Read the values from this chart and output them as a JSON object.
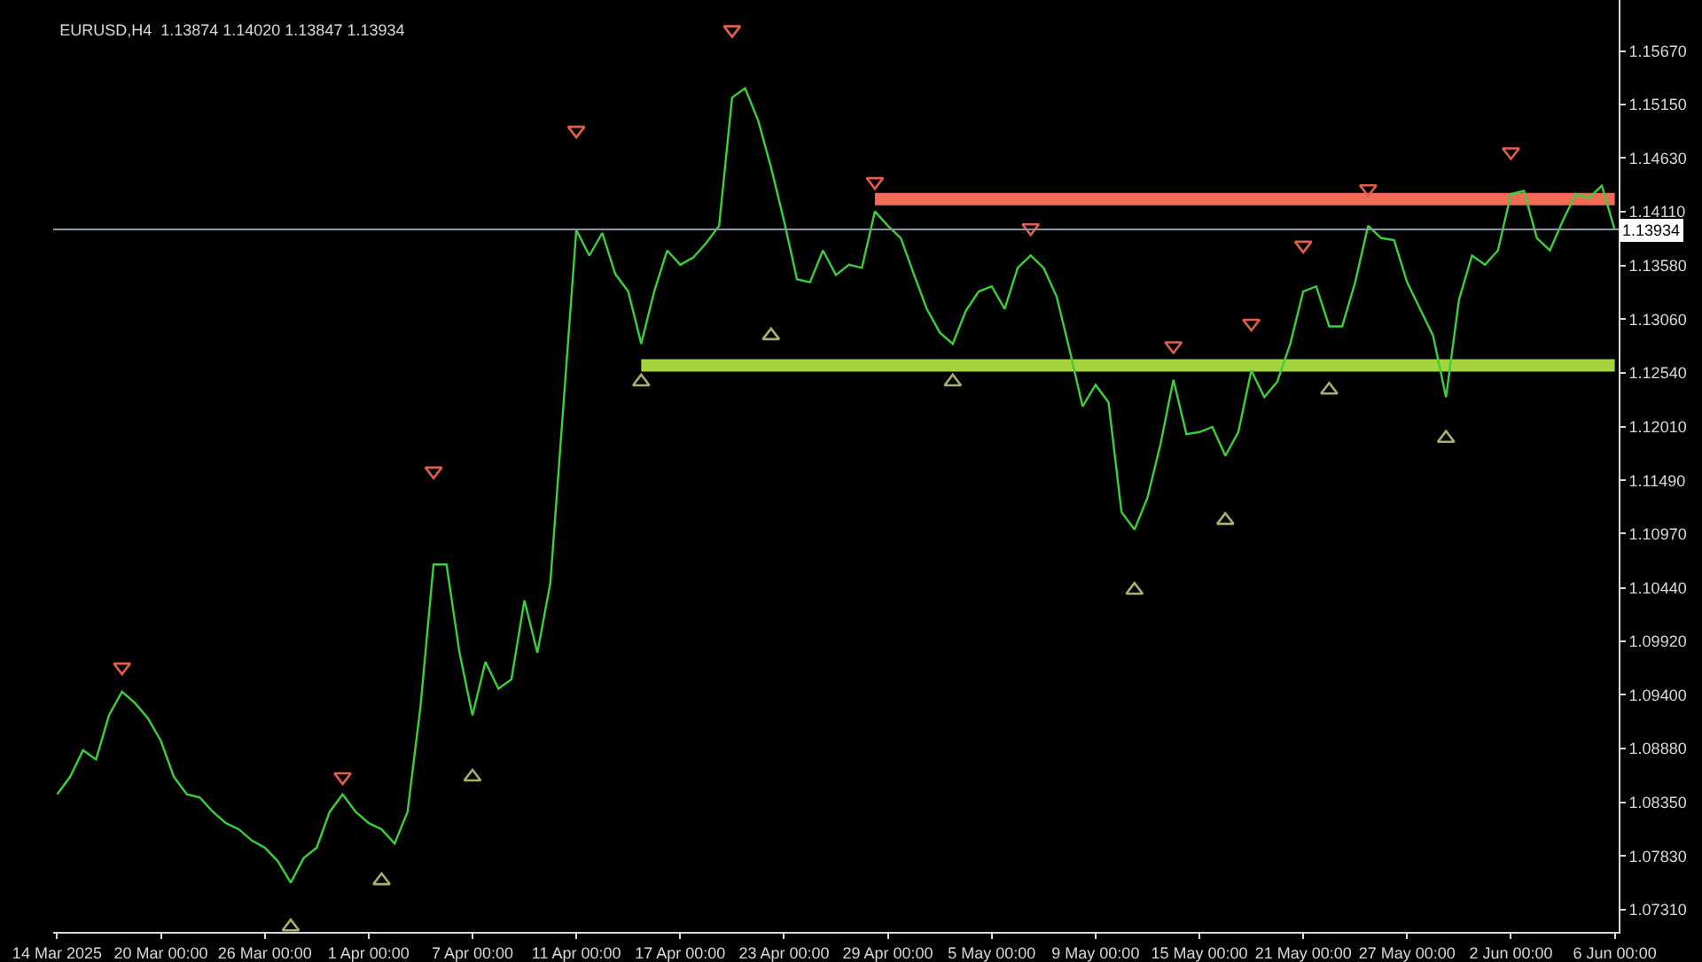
{
  "chart_data": {
    "type": "line",
    "title": "EURUSD,H4  1.13874 1.14020 1.13847 1.13934",
    "categories": [
      "14 Mar 2025",
      null,
      null,
      null,
      null,
      null,
      null,
      null,
      "20 Mar 00:00",
      null,
      null,
      null,
      null,
      null,
      null,
      null,
      "26 Mar 00:00",
      null,
      null,
      null,
      null,
      null,
      null,
      null,
      "1 Apr 00:00",
      null,
      null,
      null,
      null,
      null,
      null,
      null,
      "7 Apr 00:00",
      null,
      null,
      null,
      null,
      null,
      null,
      null,
      "11 Apr 00:00",
      null,
      null,
      null,
      null,
      null,
      null,
      null,
      "17 Apr 00:00",
      null,
      null,
      null,
      null,
      null,
      null,
      null,
      "23 Apr 00:00",
      null,
      null,
      null,
      null,
      null,
      null,
      null,
      "29 Apr 00:00",
      null,
      null,
      null,
      null,
      null,
      null,
      null,
      "5 May 00:00",
      null,
      null,
      null,
      null,
      null,
      null,
      null,
      "9 May 00:00",
      null,
      null,
      null,
      null,
      null,
      null,
      null,
      "15 May 00:00",
      null,
      null,
      null,
      null,
      null,
      null,
      null,
      "21 May 00:00",
      null,
      null,
      null,
      null,
      null,
      null,
      null,
      "27 May 00:00",
      null,
      null,
      null,
      null,
      null,
      null,
      null,
      "2 Jun 00:00",
      null,
      null,
      null,
      null,
      null,
      null,
      null,
      "6 Jun 00:00"
    ],
    "series": [
      {
        "color": "#3ccf3c",
        "values": [
          1.0843,
          1.086,
          1.0886,
          1.0877,
          1.092,
          1.0943,
          1.0932,
          1.0917,
          1.0895,
          1.086,
          1.0843,
          1.084,
          1.0826,
          1.0815,
          1.0809,
          1.0798,
          1.0791,
          1.0778,
          1.0757,
          1.0781,
          1.0791,
          1.0826,
          1.0843,
          1.0826,
          1.0815,
          1.0809,
          1.0795,
          1.0826,
          1.0929,
          1.1067,
          1.1067,
          1.0981,
          1.092,
          1.0972,
          1.0946,
          1.0955,
          1.1032,
          1.0981,
          1.1049,
          1.1221,
          1.1393,
          1.1368,
          1.139,
          1.135,
          1.1333,
          1.1282,
          1.1333,
          1.1373,
          1.1359,
          1.1366,
          1.138,
          1.1397,
          1.1522,
          1.1531,
          1.15,
          1.1454,
          1.1402,
          1.1345,
          1.1342,
          1.1373,
          1.1349,
          1.1359,
          1.1356,
          1.1411,
          1.1397,
          1.1385,
          1.135,
          1.1316,
          1.1293,
          1.1282,
          1.1314,
          1.1333,
          1.1338,
          1.1316,
          1.1356,
          1.1368,
          1.1356,
          1.1328,
          1.1276,
          1.1221,
          1.1242,
          1.1225,
          1.1118,
          1.1101,
          1.1132,
          1.1184,
          1.1247,
          1.1194,
          1.1196,
          1.1201,
          1.1173,
          1.1196,
          1.1256,
          1.123,
          1.1245,
          1.1282,
          1.1333,
          1.1338,
          1.1299,
          1.1299,
          1.1342,
          1.1397,
          1.1385,
          1.1383,
          1.1342,
          1.1316,
          1.129,
          1.123,
          1.1325,
          1.1368,
          1.1359,
          1.1373,
          1.1428,
          1.1431,
          1.1385,
          1.1373,
          1.1402,
          1.1428,
          1.1424,
          1.1436,
          1.1393
        ]
      },
      {
        "type": "line",
        "color": "#f26b55",
        "values": [
          null,
          null,
          null,
          null,
          null,
          null,
          null,
          null,
          null,
          null,
          null,
          null,
          null,
          null,
          null,
          null,
          null,
          null,
          null,
          null,
          null,
          null,
          null,
          null,
          null,
          null,
          null,
          null,
          null,
          null,
          null,
          null,
          null,
          null,
          null,
          null,
          null,
          null,
          null,
          null,
          null,
          null,
          null,
          null,
          null,
          null,
          null,
          null,
          null,
          null,
          null,
          null,
          null,
          null,
          null,
          null,
          null,
          null,
          null,
          null,
          null,
          null,
          null,
          1.1423,
          1.1423,
          1.1423,
          1.1423,
          1.1423,
          1.1423,
          1.1423,
          1.1423,
          1.1423,
          1.1423,
          1.1423,
          1.1423,
          1.1423,
          1.1423,
          1.1423,
          1.1423,
          1.1423,
          1.1423,
          1.1423,
          1.1423,
          1.1423,
          1.1423,
          1.1423,
          1.1423,
          1.1423,
          1.1423,
          1.1423,
          1.1423,
          1.1423,
          1.1423,
          1.1423,
          1.1423,
          1.1423,
          1.1423,
          1.1423,
          1.1423,
          1.1423,
          1.1423,
          1.1423,
          1.1423,
          1.1423,
          1.1423,
          1.1423,
          1.1423,
          1.1423,
          1.1423,
          1.1423,
          1.1423,
          1.1423,
          1.1423,
          1.1423,
          1.1423,
          1.1423,
          1.1423,
          1.1423,
          1.1423,
          1.1423,
          1.1423
        ]
      },
      {
        "type": "line",
        "color": "#a4d33c",
        "values": [
          null,
          null,
          null,
          null,
          null,
          null,
          null,
          null,
          null,
          null,
          null,
          null,
          null,
          null,
          null,
          null,
          null,
          null,
          null,
          null,
          null,
          null,
          null,
          null,
          null,
          null,
          null,
          null,
          null,
          null,
          null,
          null,
          null,
          null,
          null,
          null,
          null,
          null,
          null,
          null,
          null,
          null,
          null,
          null,
          null,
          1.1261,
          1.1261,
          1.1261,
          1.1261,
          1.1261,
          1.1261,
          1.1261,
          1.1261,
          1.1261,
          1.1261,
          1.1261,
          1.1261,
          1.1261,
          1.1261,
          1.1261,
          1.1261,
          1.1261,
          1.1261,
          1.1261,
          1.1261,
          1.1261,
          1.1261,
          1.1261,
          1.1261,
          1.1261,
          1.1261,
          1.1261,
          1.1261,
          1.1261,
          1.1261,
          1.1261,
          1.1261,
          1.1261,
          1.1261,
          1.1261,
          1.1261,
          1.1261,
          1.1261,
          1.1261,
          1.1261,
          1.1261,
          1.1261,
          1.1261,
          1.1261,
          1.1261,
          1.1261,
          1.1261,
          1.1261,
          1.1261,
          1.1261,
          1.1261,
          1.1261,
          1.1261,
          1.1261,
          1.1261,
          1.1261,
          1.1261,
          1.1261,
          1.1261,
          1.1261,
          1.1261,
          1.1261,
          1.1261,
          1.1261,
          1.1261,
          1.1261,
          1.1261,
          1.1261,
          1.1261,
          1.1261,
          1.1261,
          1.1261,
          1.1261,
          1.1261,
          1.1261,
          1.1261
        ]
      },
      {
        "type": "scatter",
        "marker": "triangle-down",
        "color": "#e0604c",
        "values": [
          null,
          null,
          null,
          null,
          null,
          1.0967,
          null,
          null,
          null,
          null,
          null,
          null,
          null,
          null,
          null,
          null,
          null,
          null,
          null,
          null,
          null,
          null,
          1.086,
          null,
          null,
          null,
          null,
          null,
          null,
          1.1158,
          null,
          null,
          null,
          null,
          null,
          null,
          null,
          null,
          null,
          null,
          1.149,
          null,
          null,
          null,
          null,
          null,
          null,
          null,
          null,
          null,
          null,
          null,
          1.1588,
          null,
          null,
          null,
          null,
          null,
          null,
          null,
          null,
          null,
          null,
          1.144,
          null,
          null,
          null,
          null,
          null,
          null,
          null,
          null,
          null,
          null,
          null,
          1.1395,
          null,
          null,
          null,
          null,
          null,
          null,
          null,
          null,
          null,
          null,
          1.128,
          null,
          null,
          null,
          null,
          null,
          1.1302,
          null,
          null,
          null,
          1.1378,
          null,
          null,
          null,
          null,
          1.1433,
          null,
          null,
          null,
          null,
          null,
          null,
          null,
          null,
          null,
          null,
          1.1469,
          null,
          null,
          null,
          null,
          null,
          null,
          null,
          null
        ]
      },
      {
        "type": "scatter",
        "marker": "triangle-up",
        "color": "#a8b070",
        "values": [
          null,
          null,
          null,
          null,
          null,
          null,
          null,
          null,
          null,
          null,
          null,
          null,
          null,
          null,
          null,
          null,
          null,
          null,
          1.0714,
          null,
          null,
          null,
          null,
          null,
          null,
          1.0759,
          null,
          null,
          null,
          null,
          null,
          null,
          1.086,
          null,
          null,
          null,
          null,
          null,
          null,
          null,
          null,
          null,
          null,
          null,
          null,
          1.1245,
          null,
          null,
          null,
          null,
          null,
          null,
          null,
          null,
          null,
          1.129,
          null,
          null,
          null,
          null,
          null,
          null,
          null,
          null,
          null,
          null,
          null,
          null,
          null,
          1.1245,
          null,
          null,
          null,
          null,
          null,
          null,
          null,
          null,
          null,
          null,
          null,
          null,
          null,
          1.1042,
          null,
          null,
          null,
          null,
          null,
          null,
          1.111,
          null,
          null,
          null,
          null,
          null,
          null,
          null,
          1.1237,
          null,
          null,
          null,
          null,
          null,
          null,
          null,
          null,
          1.119,
          null,
          null,
          null,
          null,
          null,
          null,
          null,
          null,
          null,
          null,
          null,
          null,
          null
        ]
      }
    ],
    "ylim": [
      1.0709,
      1.1617
    ],
    "yticks": [
      {
        "value": 1.1567,
        "label": "1.15670"
      },
      {
        "value": 1.1515,
        "label": "1.15150"
      },
      {
        "value": 1.1463,
        "label": "1.14630"
      },
      {
        "value": 1.1411,
        "label": "1.14110"
      },
      {
        "value": 1.1358,
        "label": "1.13580"
      },
      {
        "value": 1.1306,
        "label": "1.13060"
      },
      {
        "value": 1.1254,
        "label": "1.12540"
      },
      {
        "value": 1.1201,
        "label": "1.12010"
      },
      {
        "value": 1.1149,
        "label": "1.11490"
      },
      {
        "value": 1.1097,
        "label": "1.10970"
      },
      {
        "value": 1.1044,
        "label": "1.10440"
      },
      {
        "value": 1.0992,
        "label": "1.09920"
      },
      {
        "value": 1.094,
        "label": "1.09400"
      },
      {
        "value": 1.0888,
        "label": "1.08880"
      },
      {
        "value": 1.0835,
        "label": "1.08350"
      },
      {
        "value": 1.0783,
        "label": "1.07830"
      },
      {
        "value": 1.0731,
        "label": "1.07310"
      }
    ],
    "ref_lines": [
      {
        "axis": "y",
        "value": 1.13934,
        "label": "1.13934",
        "color": "#8a96a8"
      }
    ],
    "marker": "none",
    "line_style": "solid",
    "grid": false
  }
}
